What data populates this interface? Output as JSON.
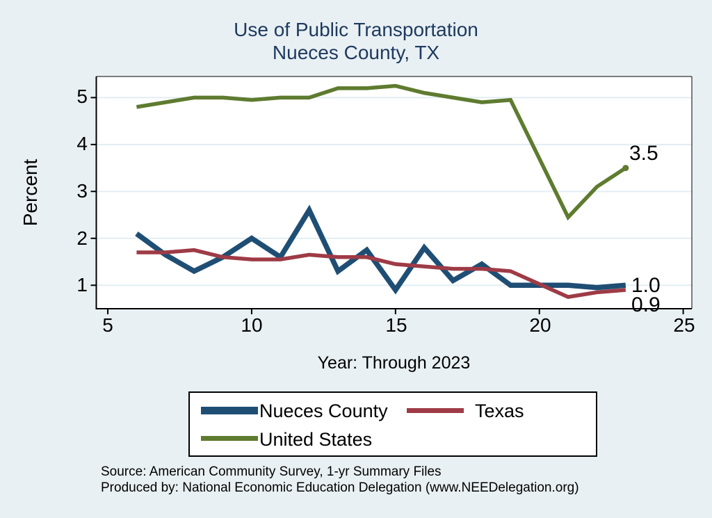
{
  "title": {
    "line1": "Use of Public Transportation",
    "line2": "Nueces County, TX"
  },
  "axes": {
    "y_label": "Percent",
    "x_label": "Year: Through 2023",
    "x_ticks": [
      "5",
      "10",
      "15",
      "20",
      "25"
    ],
    "y_ticks": [
      "1",
      "2",
      "3",
      "4",
      "5"
    ]
  },
  "end_labels": {
    "united_states": "3.5",
    "nueces_county": "1.0",
    "texas": "0.9"
  },
  "legend": {
    "items": [
      {
        "label": "Nueces County",
        "color": "#1f4e74"
      },
      {
        "label": "Texas",
        "color": "#9e3b46"
      },
      {
        "label": "United States",
        "color": "#5e7b2f"
      }
    ]
  },
  "footer": {
    "source": "Source: American Community Survey, 1-yr Summary Files",
    "produced_by": "Produced by: National Economic Education Delegation (www.NEEDelegation.org)"
  },
  "colors": {
    "background": "#e9f0f3",
    "plot_background": "#ffffff",
    "gridline": "#e2edf3",
    "frame": "#000000",
    "title_text": "#1e3a60"
  },
  "chart_data": {
    "type": "line",
    "title": "Use of Public Transportation — Nueces County, TX",
    "xlabel": "Year: Through 2023",
    "ylabel": "Percent",
    "x_note": "x values are years 2006–2023 shown as 6–23 on the axis; 2020 has no data point",
    "x": [
      6,
      7,
      8,
      9,
      10,
      11,
      12,
      13,
      14,
      15,
      16,
      17,
      18,
      19,
      21,
      22,
      23
    ],
    "series": [
      {
        "name": "Nueces County",
        "color": "#1f4e74",
        "stroke_width": 7.5,
        "end_marker": false,
        "values": [
          2.1,
          1.65,
          1.3,
          1.6,
          2.0,
          1.6,
          2.6,
          1.3,
          1.75,
          0.9,
          1.8,
          1.1,
          1.45,
          1.0,
          1.0,
          0.95,
          1.0
        ]
      },
      {
        "name": "Texas",
        "color": "#9e3b46",
        "stroke_width": 5.5,
        "end_marker": false,
        "values": [
          1.7,
          1.7,
          1.75,
          1.6,
          1.55,
          1.55,
          1.65,
          1.6,
          1.6,
          1.45,
          1.4,
          1.35,
          1.35,
          1.3,
          0.75,
          0.85,
          0.9
        ]
      },
      {
        "name": "United States",
        "color": "#5e7b2f",
        "stroke_width": 5.5,
        "end_marker": true,
        "values": [
          4.8,
          4.9,
          5.0,
          5.0,
          4.95,
          5.0,
          5.0,
          5.2,
          5.2,
          5.25,
          5.1,
          5.0,
          4.9,
          4.95,
          2.45,
          3.1,
          3.5
        ]
      }
    ],
    "xlim": [
      4.6,
      25.3
    ],
    "ylim": [
      0.5,
      5.45
    ],
    "grid": "horizontal",
    "legend_position": "bottom"
  }
}
